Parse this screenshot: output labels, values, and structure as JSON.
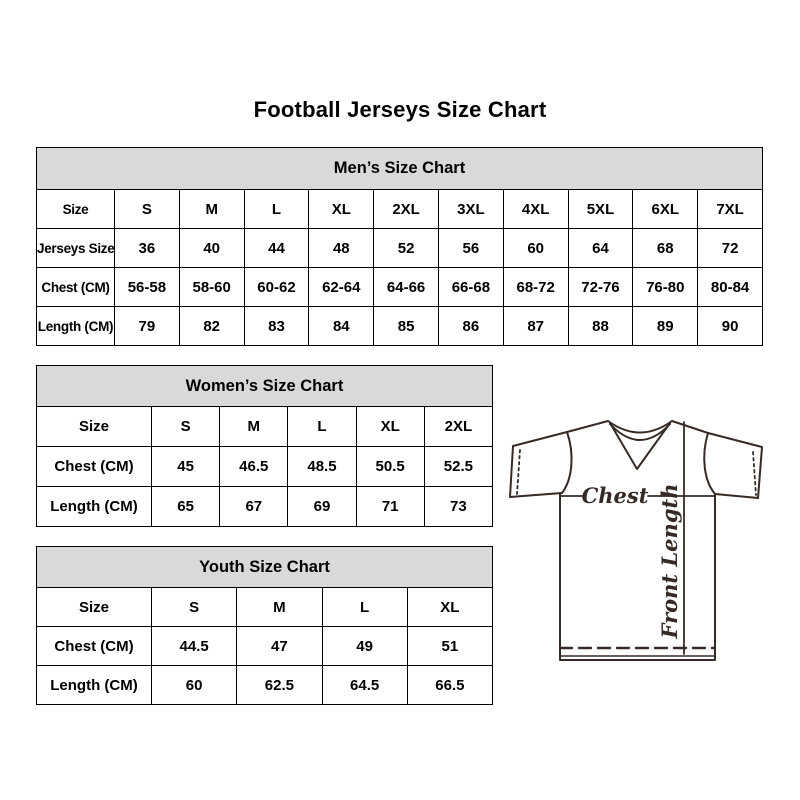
{
  "title": "Football Jerseys Size Chart",
  "colors": {
    "table_header_bg": "#d9d9d9",
    "table_border": "#000000",
    "jersey_line": "#352a25",
    "text": "#000000"
  },
  "tables": [
    {
      "id": "mens",
      "title": "Men’s Size Chart",
      "rows": [
        [
          "Size",
          "S",
          "M",
          "L",
          "XL",
          "2XL",
          "3XL",
          "4XL",
          "5XL",
          "6XL",
          "7XL"
        ],
        [
          "Jerseys Size",
          "36",
          "40",
          "44",
          "48",
          "52",
          "56",
          "60",
          "64",
          "68",
          "72"
        ],
        [
          "Chest (CM)",
          "56-58",
          "58-60",
          "60-62",
          "62-64",
          "64-66",
          "66-68",
          "68-72",
          "72-76",
          "76-80",
          "80-84"
        ],
        [
          "Length (CM)",
          "79",
          "82",
          "83",
          "84",
          "85",
          "86",
          "87",
          "88",
          "89",
          "90"
        ]
      ]
    },
    {
      "id": "womens",
      "title": "Women’s Size Chart",
      "rows": [
        [
          "Size",
          "S",
          "M",
          "L",
          "XL",
          "2XL"
        ],
        [
          "Chest (CM)",
          "45",
          "46.5",
          "48.5",
          "50.5",
          "52.5"
        ],
        [
          "Length (CM)",
          "65",
          "67",
          "69",
          "71",
          "73"
        ]
      ]
    },
    {
      "id": "youth",
      "title": "Youth Size Chart",
      "rows": [
        [
          "Size",
          "S",
          "M",
          "L",
          "XL"
        ],
        [
          "Chest (CM)",
          "44.5",
          "47",
          "49",
          "51"
        ],
        [
          "Length (CM)",
          "60",
          "62.5",
          "64.5",
          "66.5"
        ]
      ]
    }
  ],
  "diagram": {
    "chest_label": "Chest",
    "front_length_label": "Front Length"
  }
}
